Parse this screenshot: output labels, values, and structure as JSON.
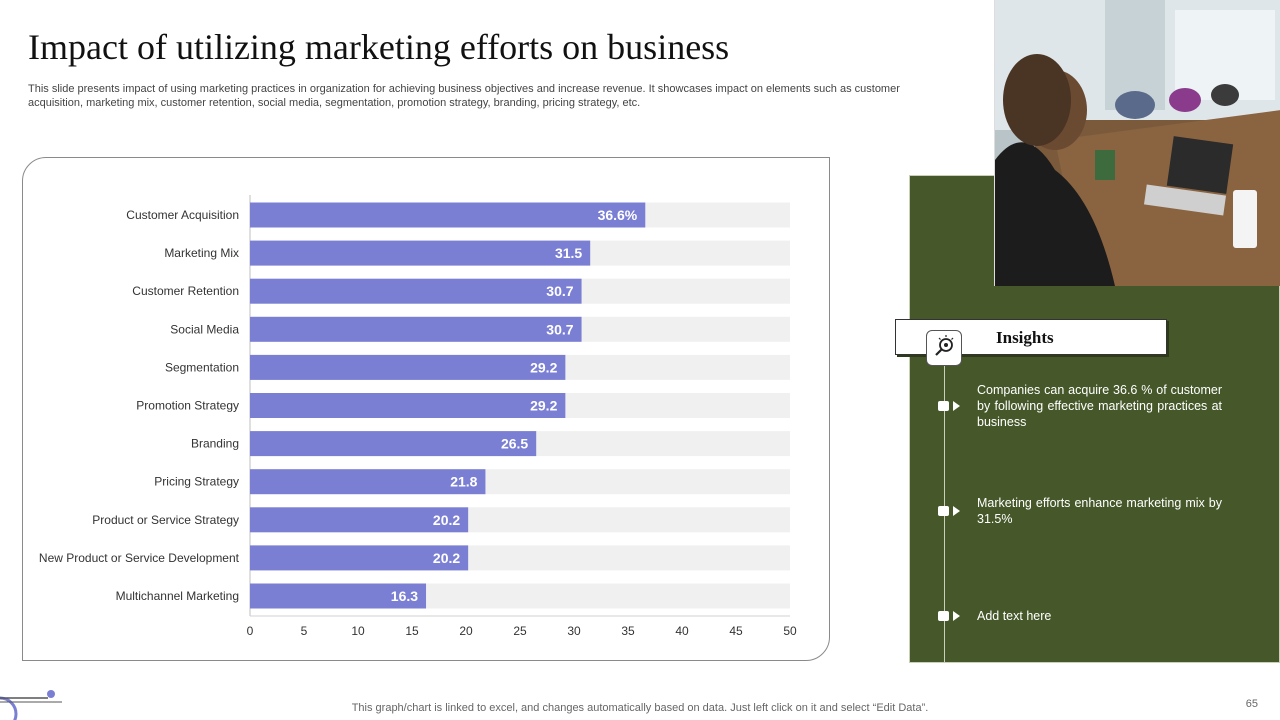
{
  "page": {
    "title": "Impact of utilizing marketing efforts on business",
    "subtitle": "This slide presents impact of using marketing practices in organization for achieving business objectives and increase revenue. It showcases impact on elements such as customer acquisition, marketing mix, customer retention, social media, segmentation, promotion strategy, branding, pricing strategy, etc.",
    "footer": "This graph/chart is linked to excel,  and changes automatically based on data. Just left click on it and select “Edit Data”.",
    "page_number": "65"
  },
  "colors": {
    "bar": "#7a7fd4",
    "track": "#f0f0f0",
    "panel": "#46582a",
    "accent": "#7a7fd4"
  },
  "insights": {
    "title": "Insights",
    "icon": "magnifier-bulb-icon",
    "items": [
      "Companies can acquire 36.6 % of customer by following effective marketing practices at business",
      "Marketing efforts enhance marketing mix by 31.5%",
      "Add text here"
    ]
  },
  "photo": {
    "icon": "meeting-photo"
  },
  "chart_data": {
    "type": "bar",
    "orientation": "horizontal",
    "categories": [
      "Customer Acquisition",
      "Marketing Mix",
      "Customer Retention",
      "Social Media",
      "Segmentation",
      "Promotion Strategy",
      "Branding",
      "Pricing Strategy",
      "Product or Service Strategy",
      "New Product or Service Development",
      "Multichannel Marketing"
    ],
    "values": [
      36.6,
      31.5,
      30.7,
      30.7,
      29.2,
      29.2,
      26.5,
      21.8,
      20.2,
      20.2,
      16.3
    ],
    "data_labels": [
      "36.6%",
      "31.5",
      "30.7",
      "30.7",
      "29.2",
      "29.2",
      "26.5",
      "21.8",
      "20.2",
      "20.2",
      "16.3"
    ],
    "xlim": [
      0,
      50
    ],
    "xticks": [
      0,
      5,
      10,
      15,
      20,
      25,
      30,
      35,
      40,
      45,
      50
    ],
    "title": "",
    "xlabel": "",
    "ylabel": "",
    "grid": false,
    "legend": "none"
  }
}
